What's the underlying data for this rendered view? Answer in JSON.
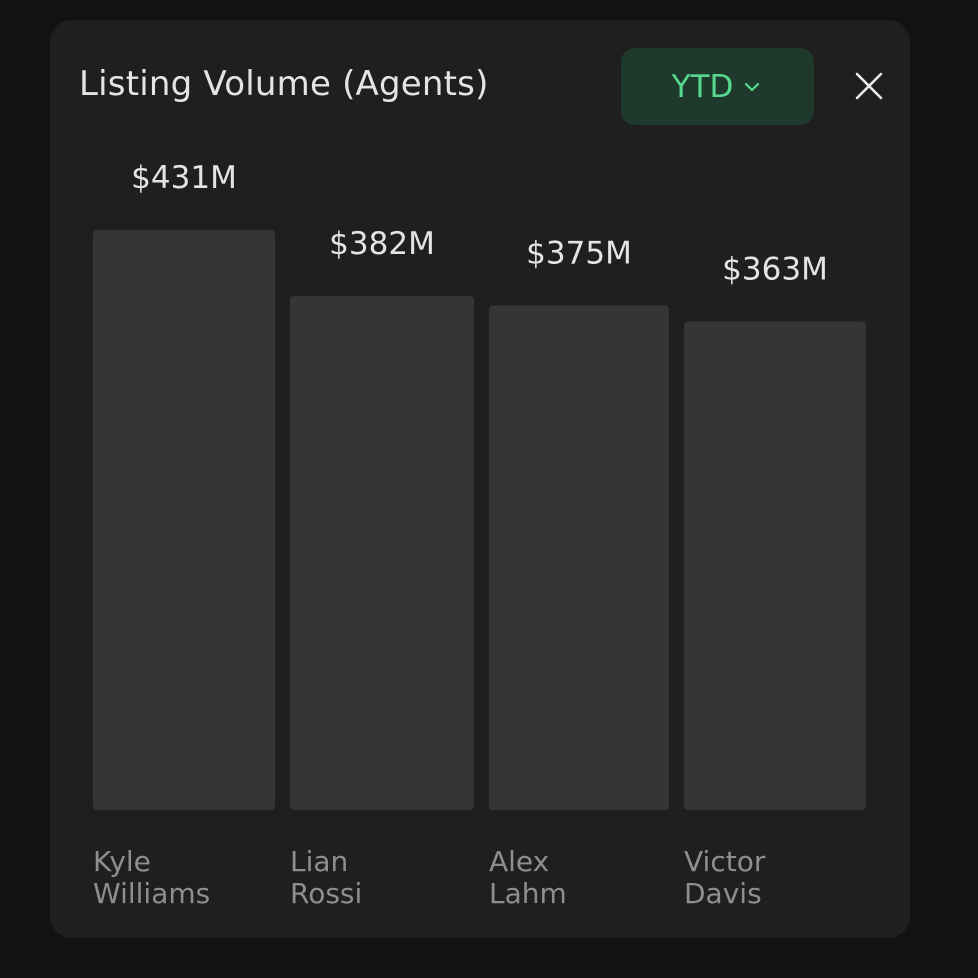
{
  "header": {
    "title": "Listing Volume (Agents)",
    "range_label": "YTD",
    "range_icon": "chevron-down-icon",
    "close_icon": "close-icon"
  },
  "colors": {
    "background": "#111313",
    "card": "#1f1f1f",
    "bar": "#353535",
    "accent": "#56d98f",
    "accent_bg": "#1f3a2c"
  },
  "chart_data": {
    "type": "bar",
    "categories": [
      "Kyle Williams",
      "Lian Rossi",
      "Alex Lahm",
      "Victor Davis"
    ],
    "category_lines": [
      [
        "Kyle",
        "Williams"
      ],
      [
        "Lian",
        "Rossi"
      ],
      [
        "Alex",
        "Lahm"
      ],
      [
        "Victor",
        "Davis"
      ]
    ],
    "values": [
      431,
      382,
      375,
      363
    ],
    "value_labels": [
      "$431M",
      "$382M",
      "$375M",
      "$363M"
    ],
    "unit": "$M",
    "title": "Listing Volume (Agents)",
    "xlabel": "",
    "ylabel": "",
    "ylim": [
      0,
      431
    ],
    "grid": false,
    "legend": "none"
  }
}
